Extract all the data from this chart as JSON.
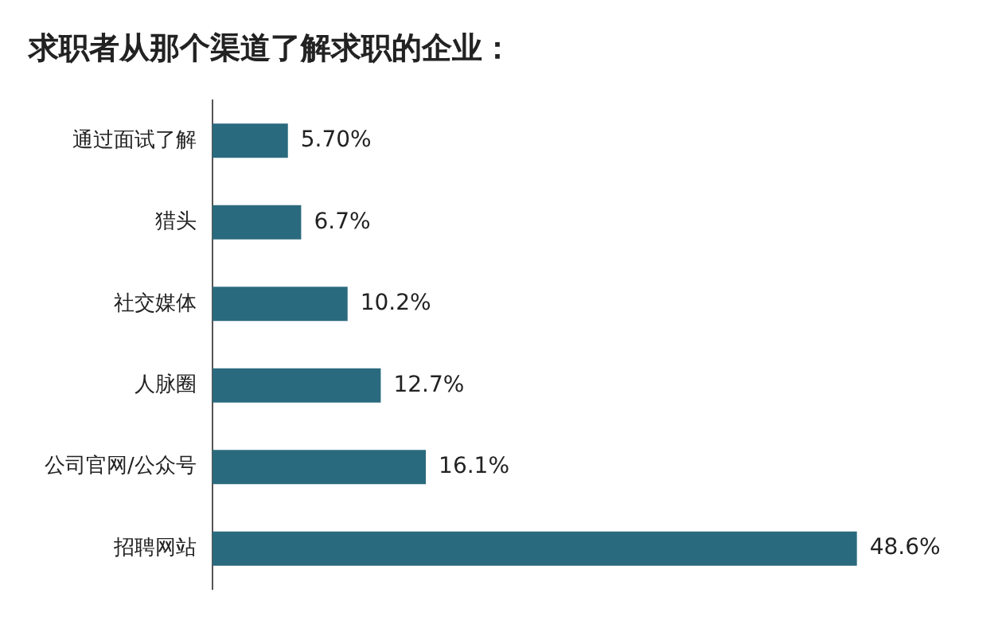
{
  "chart_data": {
    "type": "bar",
    "orientation": "horizontal",
    "title": "求职者从那个渠道了解求职的企业：",
    "categories": [
      "通过面试了解",
      "猎头",
      "社交媒体",
      "人脉圈",
      "公司官网/公众号",
      "招聘网站"
    ],
    "values": [
      5.7,
      6.7,
      10.2,
      12.7,
      16.1,
      48.6
    ],
    "value_labels": [
      "5.70%",
      "6.7%",
      "10.2%",
      "12.7%",
      "16.1%",
      "48.6%"
    ],
    "color": "#2a6a7e",
    "grid": false,
    "legend": false,
    "tick_labels": "y"
  }
}
